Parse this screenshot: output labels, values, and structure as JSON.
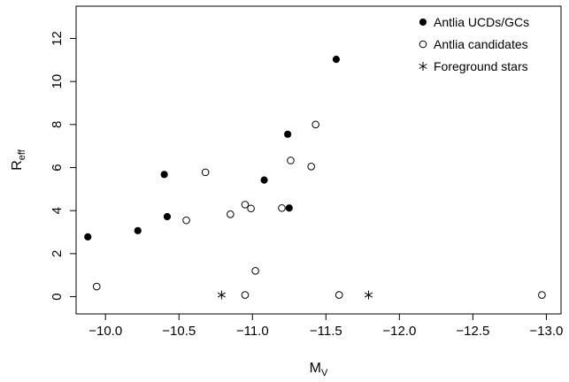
{
  "chart_data": {
    "type": "scatter",
    "xlabel": {
      "main": "M",
      "sub": "V"
    },
    "ylabel": {
      "main": "R",
      "sub": "eff"
    },
    "xlim": [
      -9.8,
      -13.1
    ],
    "ylim": [
      -0.8,
      13.5
    ],
    "x_ticks": [
      -10.0,
      -10.5,
      -11.0,
      -11.5,
      -12.0,
      -12.5,
      -13.0
    ],
    "x_tick_labels": [
      "−10.0",
      "−10.5",
      "−11.0",
      "−11.5",
      "−12.0",
      "−12.5",
      "−13.0"
    ],
    "y_ticks": [
      0,
      2,
      4,
      6,
      8,
      10,
      12
    ],
    "y_tick_labels": [
      "0",
      "2",
      "4",
      "6",
      "8",
      "10",
      "12"
    ],
    "legend_position": "top-right",
    "grid": false,
    "series": [
      {
        "name": "Antlia UCDs/GCs",
        "marker": "filled-circle",
        "points": [
          [
            -9.88,
            2.78
          ],
          [
            -10.22,
            3.07
          ],
          [
            -10.4,
            5.68
          ],
          [
            -10.42,
            3.72
          ],
          [
            -11.08,
            5.42
          ],
          [
            -11.24,
            7.55
          ],
          [
            -11.25,
            4.12
          ],
          [
            -11.57,
            11.03
          ]
        ]
      },
      {
        "name": "Antlia candidates",
        "marker": "open-circle",
        "points": [
          [
            -9.94,
            0.47
          ],
          [
            -10.55,
            3.55
          ],
          [
            -10.68,
            5.78
          ],
          [
            -10.85,
            3.83
          ],
          [
            -10.95,
            4.28
          ],
          [
            -10.99,
            4.1
          ],
          [
            -11.02,
            1.2
          ],
          [
            -10.95,
            0.08
          ],
          [
            -11.2,
            4.12
          ],
          [
            -11.26,
            6.33
          ],
          [
            -11.4,
            6.05
          ],
          [
            -11.43,
            8.0
          ],
          [
            -11.59,
            0.08
          ],
          [
            -12.97,
            0.08
          ]
        ]
      },
      {
        "name": "Foreground stars",
        "marker": "asterisk",
        "points": [
          [
            -10.79,
            0.08
          ],
          [
            -11.79,
            0.08
          ]
        ]
      }
    ]
  }
}
